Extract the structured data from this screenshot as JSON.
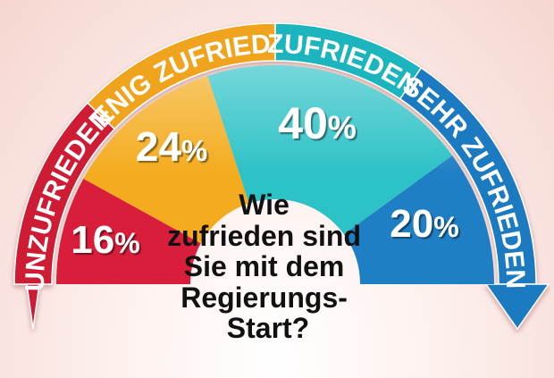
{
  "chart_data": {
    "type": "pie",
    "variant": "semicircle-gauge",
    "question_lines": [
      "Wie",
      "zufrieden sind",
      "Sie mit dem",
      "Regierungs-",
      "Start?"
    ],
    "categories": [
      "UNZUFRIEDEN",
      "WENIG ZUFRIEDEN",
      "ZUFRIEDEN",
      "SEHR ZUFRIEDEN"
    ],
    "values": [
      16,
      24,
      40,
      20
    ],
    "value_labels": [
      "16",
      "24",
      "40",
      "20"
    ],
    "unit": "%",
    "colors": [
      "#d81e3a",
      "#f4ac1e",
      "#2cc2c6",
      "#1f7fc4"
    ],
    "band_colors": [
      "#cf1d36",
      "#f0a31c",
      "#1bb5bd",
      "#1f7ac0"
    ]
  }
}
